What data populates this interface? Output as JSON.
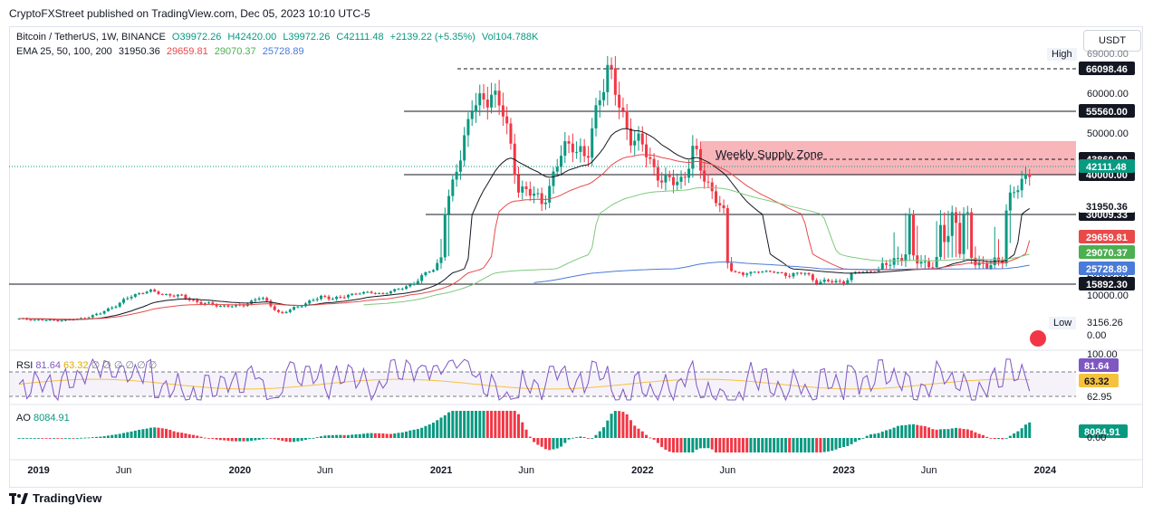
{
  "publisher_line": "CryptoFXStreet published on TradingView.com, Dec 05, 2023 10:10 UTC-5",
  "legend": {
    "symbol": "Bitcoin / TetherUS, 1W, BINANCE",
    "open": "O39972.26",
    "high": "H42420.00",
    "low": "L39972.26",
    "close": "C42111.48",
    "change": "+2139.22 (+5.35%)",
    "volume": "Vol104.788K",
    "ema_label": "EMA 25, 50, 100, 200",
    "ema_values": [
      "31950.36",
      "29659.81",
      "29070.37",
      "25728.89"
    ]
  },
  "currency_button": "USDT",
  "high_marker": {
    "label": "High",
    "value": "69000.00"
  },
  "low_marker": {
    "label": "Low",
    "value": "3156.26"
  },
  "annotation": "Weekly Supply Zone",
  "rsi": {
    "label": "RSI",
    "value1": "81.64",
    "value2": "63.32",
    "placeholders": "∅ ∅ ∅ ∅ ∅ ∅",
    "tags": [
      "100.00",
      "81.64",
      "63.32",
      "62.95"
    ]
  },
  "ao": {
    "label": "AO",
    "value": "8084.91",
    "tags": [
      "8084.91",
      "0.00"
    ]
  },
  "branding": "TradingView",
  "colors": {
    "up": "#089981",
    "down": "#f23645",
    "ema25": "#131722",
    "ema50": "#e84a4a",
    "ema100": "#7fc97f",
    "ema200": "#4a7bd8",
    "supply_zone": "#f7a8ae",
    "rsi_line": "#7e57c2",
    "rsi_ma": "#f6c23e"
  },
  "chart_data": {
    "type": "candlestick",
    "symbol": "BTCUSDT",
    "interval": "1W",
    "y_axis_ticks": [
      "10000.00",
      "20000.00",
      "30000.00",
      "40000.00",
      "50000.00",
      "60000.00"
    ],
    "y_axis_min_label": "0.00",
    "x_axis_ticks": [
      "2019",
      "Jun",
      "2020",
      "Jun",
      "2021",
      "Jun",
      "2022",
      "Jun",
      "2023",
      "Jun",
      "2024"
    ],
    "x_tick_years": [
      2019.0,
      2019.42,
      2020.0,
      2020.42,
      2021.0,
      2021.42,
      2022.0,
      2022.42,
      2023.0,
      2023.42,
      2024.0
    ],
    "horizontal_levels": [
      {
        "value": 66098.46,
        "label": "66098.46",
        "style": "dashed"
      },
      {
        "value": 55560.0,
        "label": "55560.00",
        "style": "solid"
      },
      {
        "value": 43860.0,
        "label": "43860.00",
        "style": "dashed"
      },
      {
        "value": 40000.0,
        "label": "40000.00",
        "style": "solid"
      },
      {
        "value": 30009.33,
        "label": "30009.33",
        "style": "solid"
      },
      {
        "value": 15892.3,
        "label": "15892.30",
        "style": "solid"
      }
    ],
    "supply_zone": {
      "from": 40000,
      "to": 46000,
      "label": "Weekly Supply Zone"
    },
    "last_price": {
      "value": 42111.48,
      "label": "42111.48"
    },
    "ema_labels": [
      {
        "name": "EMA 25",
        "value": 31950.36,
        "label": "31950.36"
      },
      {
        "name": "EMA 50",
        "value": 29659.81,
        "label": "29659.81"
      },
      {
        "name": "EMA 100",
        "value": 29070.37,
        "label": "29070.37"
      },
      {
        "name": "EMA 200",
        "value": 25728.89,
        "label": "25728.89"
      }
    ],
    "price_path": [
      [
        2018.9,
        4000
      ],
      [
        2019.0,
        3700
      ],
      [
        2019.1,
        3600
      ],
      [
        2019.2,
        4000
      ],
      [
        2019.3,
        5300
      ],
      [
        2019.4,
        8000
      ],
      [
        2019.5,
        11000
      ],
      [
        2019.55,
        12500
      ],
      [
        2019.6,
        10500
      ],
      [
        2019.7,
        9800
      ],
      [
        2019.8,
        8000
      ],
      [
        2019.9,
        7300
      ],
      [
        2020.0,
        7200
      ],
      [
        2020.1,
        9500
      ],
      [
        2020.2,
        5200
      ],
      [
        2020.3,
        7500
      ],
      [
        2020.4,
        9500
      ],
      [
        2020.5,
        9200
      ],
      [
        2020.6,
        11500
      ],
      [
        2020.7,
        10700
      ],
      [
        2020.8,
        13500
      ],
      [
        2020.9,
        18500
      ],
      [
        2021.0,
        29000
      ],
      [
        2021.05,
        36000
      ],
      [
        2021.1,
        47000
      ],
      [
        2021.15,
        57000
      ],
      [
        2021.2,
        57000
      ],
      [
        2021.25,
        61000
      ],
      [
        2021.3,
        56000
      ],
      [
        2021.38,
        37000
      ],
      [
        2021.45,
        35000
      ],
      [
        2021.5,
        33000
      ],
      [
        2021.55,
        39000
      ],
      [
        2021.6,
        46000
      ],
      [
        2021.65,
        48000
      ],
      [
        2021.72,
        43000
      ],
      [
        2021.78,
        60000
      ],
      [
        2021.83,
        66000
      ],
      [
        2021.88,
        57000
      ],
      [
        2021.95,
        48000
      ],
      [
        2022.0,
        47000
      ],
      [
        2022.05,
        42000
      ],
      [
        2022.1,
        38000
      ],
      [
        2022.2,
        39000
      ],
      [
        2022.25,
        46000
      ],
      [
        2022.3,
        40000
      ],
      [
        2022.35,
        35000
      ],
      [
        2022.4,
        30000
      ],
      [
        2022.45,
        22000
      ],
      [
        2022.5,
        19500
      ],
      [
        2022.6,
        23000
      ],
      [
        2022.7,
        19500
      ],
      [
        2022.8,
        20500
      ],
      [
        2022.85,
        17000
      ],
      [
        2022.95,
        16800
      ],
      [
        2023.0,
        16600
      ],
      [
        2023.05,
        21000
      ],
      [
        2023.15,
        23000
      ],
      [
        2023.2,
        26500
      ],
      [
        2023.3,
        29000
      ],
      [
        2023.4,
        27000
      ],
      [
        2023.45,
        26500
      ],
      [
        2023.5,
        30500
      ],
      [
        2023.6,
        29500
      ],
      [
        2023.7,
        26000
      ],
      [
        2023.78,
        27500
      ],
      [
        2023.82,
        34500
      ],
      [
        2023.87,
        37000
      ],
      [
        2023.9,
        39000
      ],
      [
        2023.93,
        42111.48
      ]
    ]
  }
}
